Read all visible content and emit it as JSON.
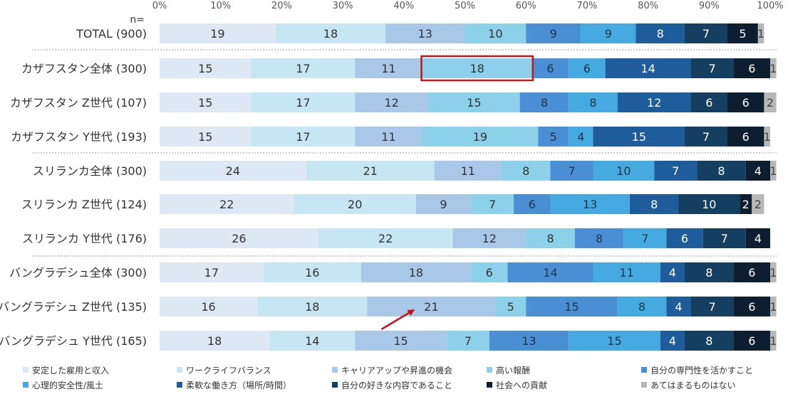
{
  "chart_data": {
    "type": "bar",
    "orientation": "horizontal",
    "stacked": true,
    "n_label": "n=",
    "xlim": [
      0,
      100
    ],
    "x_ticks": [
      "0%",
      "10%",
      "20%",
      "30%",
      "40%",
      "50%",
      "60%",
      "70%",
      "80%",
      "90%",
      "100%"
    ],
    "legend_position": "bottom",
    "categories": [
      "TOTAL (900)",
      "カザフスタン全体 (300)",
      "カザフスタン Z世代 (107)",
      "カザフスタン Y世代 (193)",
      "スリランカ全体 (300)",
      "スリランカ Z世代 (124)",
      "スリランカ Y世代 (176)",
      "バングラデシュ全体 (300)",
      "バングラデシュ Z世代 (135)",
      "バングラデシュ Y世代 (165)"
    ],
    "series": [
      {
        "name": "安定した雇用と収入",
        "color": "#dde8f4",
        "text_color": "#333333",
        "values": [
          19,
          15,
          15,
          15,
          24,
          22,
          26,
          17,
          16,
          18
        ]
      },
      {
        "name": "ワークライフバランス",
        "color": "#c7e6f3",
        "text_color": "#333333",
        "values": [
          18,
          17,
          17,
          17,
          21,
          20,
          22,
          16,
          18,
          14
        ]
      },
      {
        "name": "キャリアアップや昇進の機会",
        "color": "#a9c8e8",
        "text_color": "#333333",
        "values": [
          13,
          11,
          12,
          11,
          11,
          9,
          12,
          18,
          21,
          15
        ]
      },
      {
        "name": "高い報酬",
        "color": "#8dd0ea",
        "text_color": "#333333",
        "values": [
          10,
          18,
          15,
          19,
          8,
          7,
          8,
          6,
          5,
          7
        ]
      },
      {
        "name": "自分の専門性を活かすこと",
        "color": "#4a8fd3",
        "text_color": "#1e3550",
        "values": [
          9,
          6,
          8,
          5,
          7,
          6,
          8,
          14,
          15,
          13
        ]
      },
      {
        "name": "心理的安全性/風土",
        "color": "#44aadf",
        "text_color": "#1e3550",
        "values": [
          9,
          6,
          8,
          4,
          10,
          13,
          7,
          11,
          8,
          15
        ]
      },
      {
        "name": "柔軟な働き方（場所/時間）",
        "color": "#1e5c9b",
        "text_color": "#ffffff",
        "values": [
          8,
          14,
          12,
          15,
          7,
          8,
          6,
          4,
          4,
          4
        ]
      },
      {
        "name": "自分の好きな内容であること",
        "color": "#153f61",
        "text_color": "#ffffff",
        "values": [
          7,
          7,
          6,
          7,
          8,
          10,
          7,
          8,
          7,
          8
        ]
      },
      {
        "name": "社会への貢献",
        "color": "#0d1e31",
        "text_color": "#ffffff",
        "values": [
          5,
          6,
          6,
          6,
          4,
          2,
          4,
          6,
          6,
          6
        ]
      },
      {
        "name": "あてはまるものはない",
        "color": "#b8b8b8",
        "text_color": "#444444",
        "values": [
          1,
          1,
          2,
          1,
          1,
          2,
          0,
          1,
          1,
          1
        ]
      }
    ],
    "annotations": [
      {
        "type": "box",
        "row": 1,
        "series": 3,
        "color": "#c0161b"
      },
      {
        "type": "arrow",
        "row": 8,
        "series": 2,
        "color": "#c0161b"
      }
    ]
  }
}
